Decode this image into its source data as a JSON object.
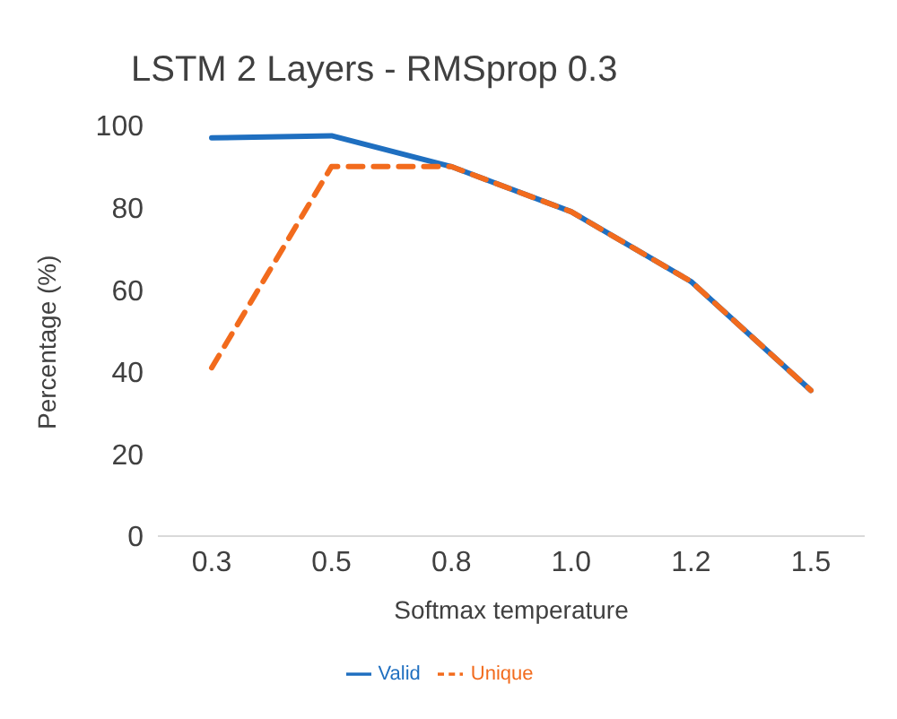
{
  "chart_data": {
    "type": "line",
    "title": "LSTM 2 Layers - RMSprop 0.3",
    "xlabel": "Softmax temperature",
    "ylabel": "Percentage (%)",
    "categories": [
      "0.3",
      "0.5",
      "0.8",
      "1.0",
      "1.2",
      "1.5"
    ],
    "series": [
      {
        "name": "Valid",
        "color": "#1f6fc0",
        "values": [
          97,
          97.5,
          90,
          79,
          62,
          35.5
        ],
        "line_style": "solid"
      },
      {
        "name": "Unique",
        "color": "#f26b1d",
        "values": [
          41,
          90,
          90,
          79,
          62,
          35.5
        ],
        "line_style": "dashed"
      }
    ],
    "ylim": [
      0,
      100
    ],
    "yticks": [
      0,
      20,
      40,
      60,
      80,
      100
    ],
    "grid": false,
    "legend": "bottom",
    "marker": "none"
  }
}
